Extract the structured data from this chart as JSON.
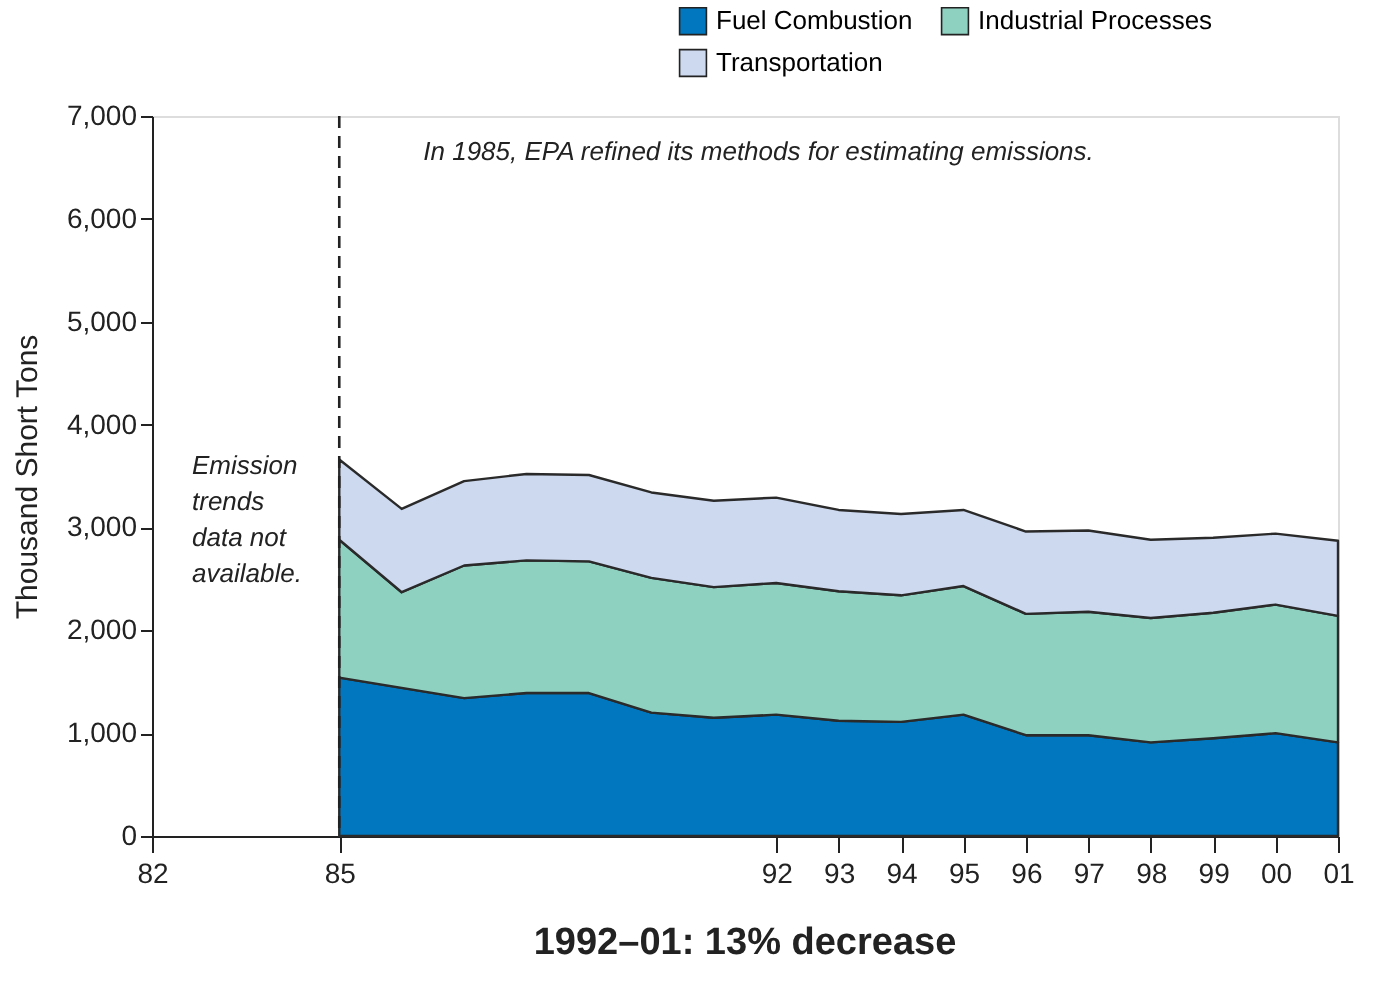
{
  "chart_data": {
    "type": "area",
    "stacked": true,
    "title": "1992–01:  13%  decrease",
    "ylabel": "Thousand Short Tons",
    "x": [
      1985,
      1986,
      1987,
      1988,
      1989,
      1990,
      1991,
      1992,
      1993,
      1994,
      1995,
      1996,
      1997,
      1998,
      1999,
      2000,
      2001
    ],
    "series": [
      {
        "name": "Fuel Combustion",
        "color": "#0077be",
        "values": [
          1540,
          1440,
          1340,
          1390,
          1390,
          1200,
          1150,
          1180,
          1120,
          1110,
          1180,
          980,
          980,
          910,
          950,
          1000,
          910
        ]
      },
      {
        "name": "Industrial Processes",
        "color": "#8fd1c1",
        "values": [
          1340,
          930,
          1290,
          1290,
          1280,
          1310,
          1270,
          1280,
          1260,
          1230,
          1250,
          1180,
          1200,
          1210,
          1220,
          1250,
          1230
        ]
      },
      {
        "name": "Transportation",
        "color": "#cdd9ef",
        "values": [
          780,
          810,
          820,
          840,
          840,
          830,
          840,
          830,
          790,
          790,
          740,
          800,
          790,
          760,
          730,
          690,
          730
        ]
      }
    ],
    "xlim": [
      1982,
      2001
    ],
    "xticks": [
      {
        "value": 1982,
        "label": "82"
      },
      {
        "value": 1985,
        "label": "85"
      },
      {
        "value": 1992,
        "label": "92"
      },
      {
        "value": 1993,
        "label": "93"
      },
      {
        "value": 1994,
        "label": "94"
      },
      {
        "value": 1995,
        "label": "95"
      },
      {
        "value": 1996,
        "label": "96"
      },
      {
        "value": 1997,
        "label": "97"
      },
      {
        "value": 1998,
        "label": "98"
      },
      {
        "value": 1999,
        "label": "99"
      },
      {
        "value": 2000,
        "label": "00"
      },
      {
        "value": 2001,
        "label": "01"
      }
    ],
    "ylim": [
      0,
      7000
    ],
    "yticks": [
      {
        "value": 0,
        "label": "0"
      },
      {
        "value": 1000,
        "label": "1,000"
      },
      {
        "value": 2000,
        "label": "2,000"
      },
      {
        "value": 3000,
        "label": "3,000"
      },
      {
        "value": 4000,
        "label": "4,000"
      },
      {
        "value": 5000,
        "label": "5,000"
      },
      {
        "value": 6000,
        "label": "6,000"
      },
      {
        "value": 7000,
        "label": "7,000"
      }
    ],
    "ref_lines": [
      {
        "axis": "x",
        "value": 1985,
        "color": "#222222",
        "line_style": "dashed"
      }
    ],
    "annotations": [
      "In 1985, EPA refined its methods for estimating emissions.",
      "Emission\ntrends\ndata not\navailable."
    ],
    "legend": "top right",
    "grid": false
  }
}
